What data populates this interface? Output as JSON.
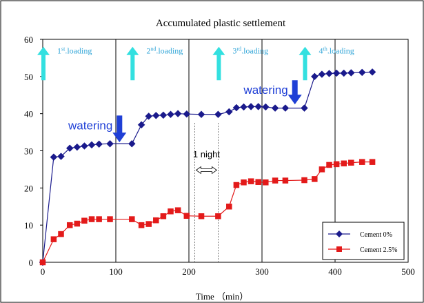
{
  "chart_data": {
    "type": "line",
    "title": "Accumulated plastic settlement",
    "xlabel": "Time （min）",
    "ylabel": "",
    "xlim": [
      0,
      500
    ],
    "ylim": [
      0,
      60
    ],
    "xticks": [
      "0",
      "100",
      "200",
      "300",
      "400",
      "500"
    ],
    "yticks": [
      "0",
      "10",
      "20",
      "30",
      "40",
      "50",
      "60"
    ],
    "grid": "vertical",
    "legend_position": "bottom-right",
    "series": [
      {
        "name": "Cement 0%",
        "color": "#1a1a8c",
        "marker": "diamond",
        "x": [
          0,
          15,
          25,
          37,
          47,
          57,
          67,
          77,
          92,
          122,
          135,
          145,
          155,
          165,
          175,
          185,
          197,
          217,
          240,
          255,
          265,
          275,
          285,
          295,
          305,
          318,
          332,
          358,
          372,
          382,
          392,
          402,
          412,
          422,
          437,
          451
        ],
        "y": [
          0,
          28.3,
          28.5,
          30.7,
          31.0,
          31.3,
          31.6,
          31.8,
          31.9,
          31.9,
          37.0,
          39.3,
          39.5,
          39.6,
          39.8,
          40.0,
          39.9,
          39.8,
          39.8,
          40.5,
          41.6,
          41.8,
          41.9,
          41.9,
          41.8,
          41.5,
          41.5,
          41.5,
          50.0,
          50.6,
          50.8,
          50.9,
          50.9,
          51.0,
          51.1,
          51.2
        ]
      },
      {
        "name": "Cement 2.5%",
        "color": "#e31a1a",
        "marker": "square",
        "x": [
          0,
          15,
          25,
          37,
          47,
          57,
          67,
          77,
          92,
          122,
          135,
          145,
          155,
          165,
          175,
          185,
          197,
          217,
          240,
          255,
          265,
          275,
          285,
          295,
          305,
          318,
          332,
          358,
          372,
          382,
          392,
          402,
          412,
          422,
          437,
          451
        ],
        "y": [
          0,
          6.2,
          7.6,
          10.0,
          10.4,
          11.2,
          11.6,
          11.6,
          11.6,
          11.6,
          10.0,
          10.3,
          11.3,
          12.4,
          13.7,
          14.0,
          12.5,
          12.4,
          12.4,
          15.0,
          20.8,
          21.5,
          21.8,
          21.6,
          21.5,
          22.0,
          22.0,
          22.1,
          22.4,
          25.0,
          26.2,
          26.4,
          26.6,
          26.8,
          27.0,
          27.0
        ]
      }
    ],
    "annotations": [
      {
        "kind": "loading",
        "num": "1",
        "sup": "st",
        "text": ".loading",
        "x": 0,
        "y_top": 58,
        "y_bottom": 49
      },
      {
        "kind": "loading",
        "num": "2",
        "sup": "nd",
        "text": ".loading",
        "x": 122,
        "y_top": 58,
        "y_bottom": 49
      },
      {
        "kind": "loading",
        "num": "3",
        "sup": "rd",
        "text": ".loading",
        "x": 240,
        "y_top": 58,
        "y_bottom": 49
      },
      {
        "kind": "loading",
        "num": "4",
        "sup": "th",
        "text": ".loading",
        "x": 358,
        "y_top": 58,
        "y_bottom": 49
      },
      {
        "kind": "watering",
        "text": "watering",
        "x": 105,
        "y_top": 39.5,
        "y_bottom": 32.3
      },
      {
        "kind": "watering",
        "text": "watering",
        "x": 345,
        "y_top": 49.0,
        "y_bottom": 42.5
      }
    ],
    "night": {
      "text": "1 night",
      "x_start": 208,
      "x_end": 240
    }
  },
  "colors": {
    "loading_arrow": "#33e0e0",
    "watering_arrow": "#1f3fd6",
    "grid": "#000000"
  }
}
